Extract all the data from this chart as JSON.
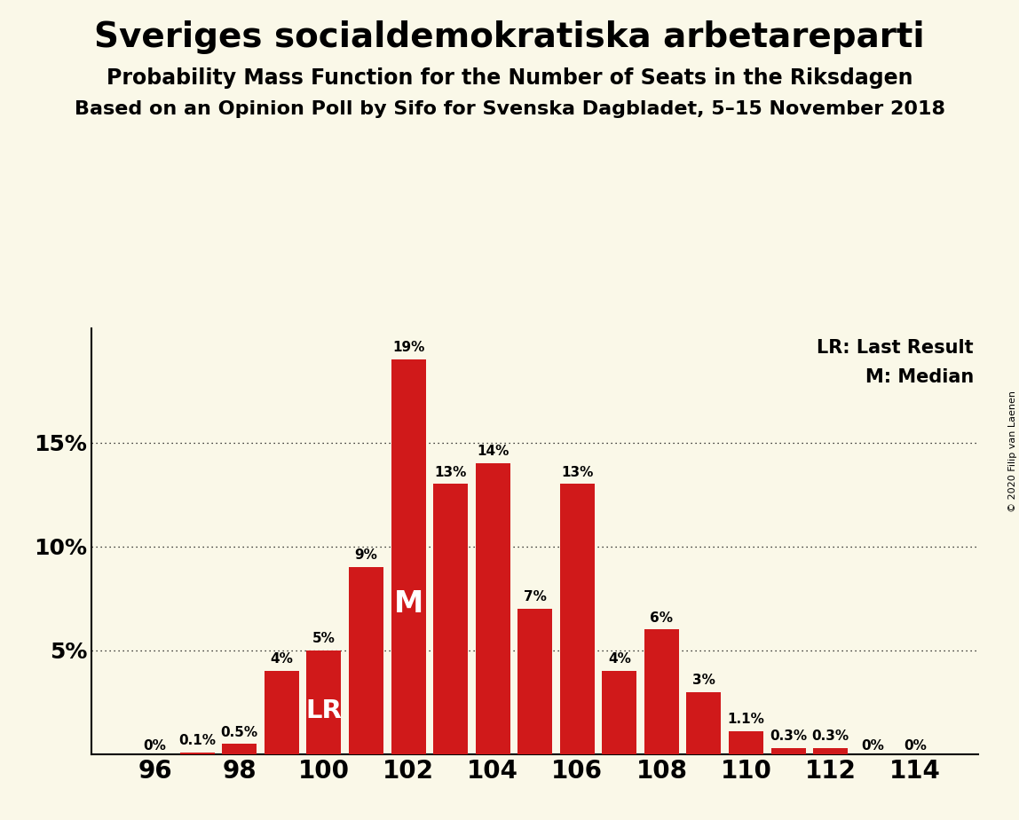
{
  "title": "Sveriges socialdemokratiska arbetareparti",
  "subtitle1": "Probability Mass Function for the Number of Seats in the Riksdagen",
  "subtitle2": "Based on an Opinion Poll by Sifo for Svenska Dagbladet, 5–15 November 2018",
  "copyright": "© 2020 Filip van Laenen",
  "legend_lr": "LR: Last Result",
  "legend_m": "M: Median",
  "background_color": "#faf8e8",
  "bar_color": "#d0191a",
  "seats": [
    96,
    97,
    98,
    99,
    100,
    101,
    102,
    103,
    104,
    105,
    106,
    107,
    108,
    109,
    110,
    111,
    112,
    113,
    114
  ],
  "values": [
    0.0,
    0.1,
    0.5,
    4.0,
    5.0,
    9.0,
    19.0,
    13.0,
    14.0,
    7.0,
    13.0,
    4.0,
    6.0,
    3.0,
    1.1,
    0.3,
    0.3,
    0.0,
    0.0
  ],
  "labels": [
    "0%",
    "0.1%",
    "0.5%",
    "4%",
    "5%",
    "9%",
    "19%",
    "13%",
    "14%",
    "7%",
    "13%",
    "4%",
    "6%",
    "3%",
    "1.1%",
    "0.3%",
    "0.3%",
    "0%",
    "0%"
  ],
  "lr_seat": 100,
  "median_seat": 102,
  "yticks": [
    5,
    10,
    15
  ],
  "ylim": [
    0,
    20.5
  ],
  "xlim": [
    94.5,
    115.5
  ],
  "title_fontsize": 28,
  "subtitle1_fontsize": 17,
  "subtitle2_fontsize": 16,
  "label_fontsize": 11,
  "ytick_fontsize": 18,
  "xtick_fontsize": 20
}
